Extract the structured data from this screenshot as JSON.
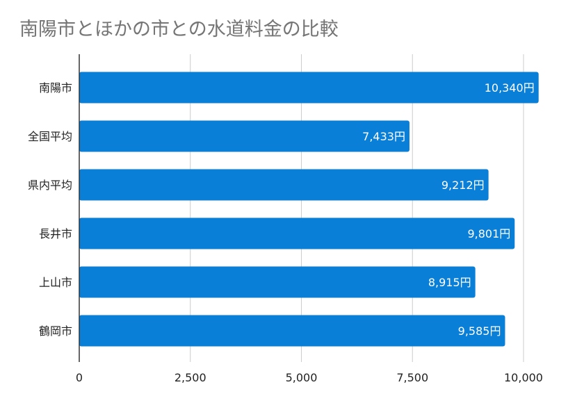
{
  "chart_data": {
    "type": "bar",
    "orientation": "horizontal",
    "title": "南陽市とほかの市との水道料金の比較",
    "categories": [
      "南陽市",
      "全国平均",
      "県内平均",
      "長井市",
      "上山市",
      "鶴岡市"
    ],
    "values": [
      10340,
      7433,
      9212,
      9801,
      8915,
      9585
    ],
    "data_labels": [
      "10,340円",
      "7,433円",
      "9,212円",
      "9,801円",
      "8,915円",
      "9,585円"
    ],
    "xlim": [
      0,
      10000
    ],
    "x_ticks": [
      0,
      2500,
      5000,
      7500,
      10000
    ],
    "x_tick_labels": [
      "0",
      "2,500",
      "5,000",
      "7,500",
      "10,000"
    ],
    "grid": true,
    "bar_color": "#0a7fd8"
  }
}
